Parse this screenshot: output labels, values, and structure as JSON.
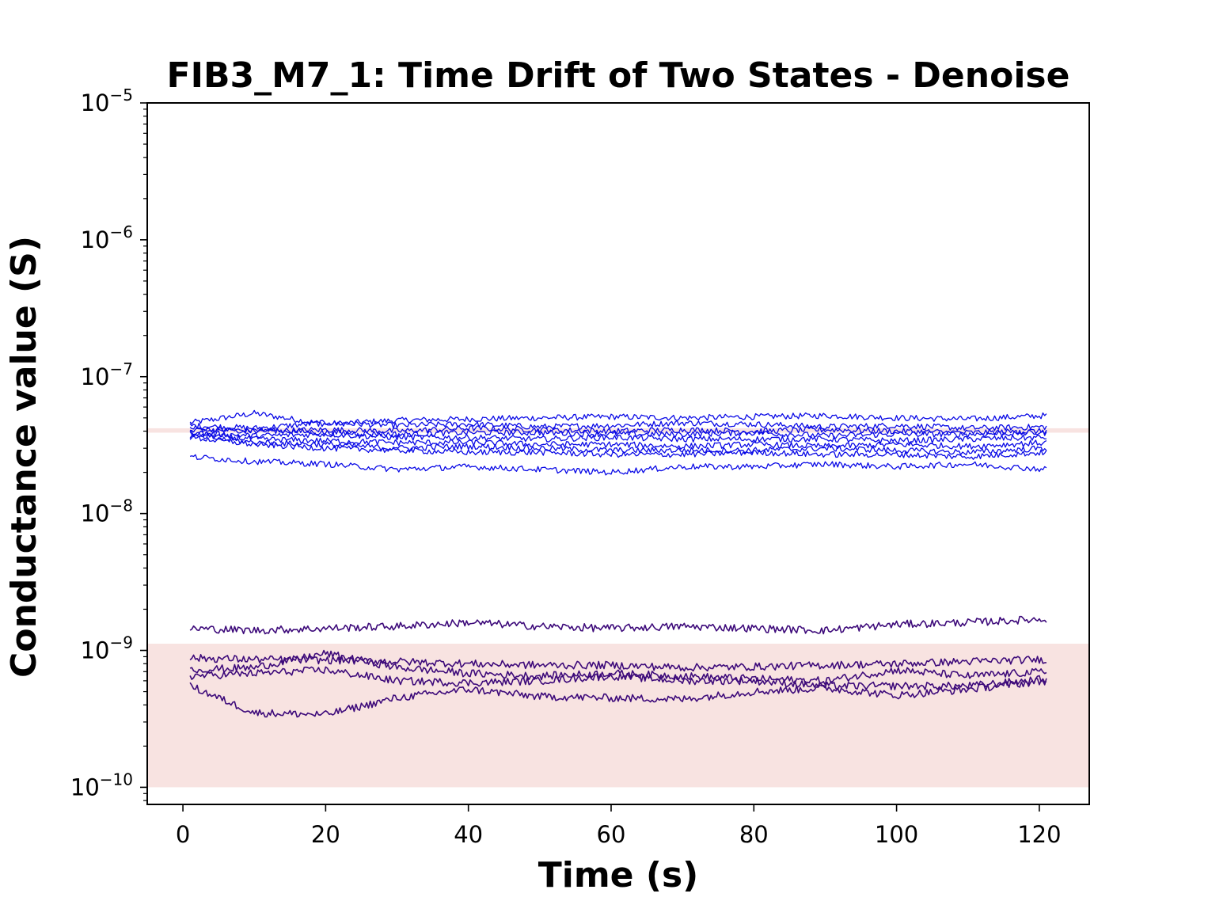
{
  "chart_data": {
    "type": "line",
    "title": "FIB3_M7_1: Time Drift of Two States - Denoise",
    "xlabel": "Time (s)",
    "ylabel": "Conductance value (S)",
    "xlim": [
      -5,
      127
    ],
    "ylim": [
      7.5e-11,
      1e-05
    ],
    "yscale": "log",
    "grid": false,
    "legend": "none",
    "xticks": [
      0,
      20,
      40,
      60,
      80,
      100,
      120
    ],
    "xtick_labels": [
      "0",
      "20",
      "40",
      "60",
      "80",
      "100",
      "120"
    ],
    "yticks": [
      1e-10,
      1e-09,
      1e-08,
      1e-07,
      1e-06,
      1e-05
    ],
    "ytick_labels": [
      {
        "base": "10",
        "exp": "−10"
      },
      {
        "base": "10",
        "exp": "−9"
      },
      {
        "base": "10",
        "exp": "−8"
      },
      {
        "base": "10",
        "exp": "−7"
      },
      {
        "base": "10",
        "exp": "−6"
      },
      {
        "base": "10",
        "exp": "−5"
      }
    ],
    "bands": [
      {
        "state": "low",
        "y": [
          1e-10,
          1.12e-09
        ],
        "color": "#f8e3e1"
      },
      {
        "state": "high",
        "y": [
          3.9e-08,
          4.2e-08
        ],
        "color": "#f8e3e1"
      }
    ],
    "x": [
      1,
      10,
      20,
      30,
      40,
      50,
      60,
      70,
      80,
      90,
      100,
      110,
      121
    ],
    "high_state_color": "#0a0ae6",
    "low_state_color": "#3d0a7a",
    "series": [
      {
        "state": "high",
        "values": [
          4.6e-08,
          5.4e-08,
          4.5e-08,
          4.8e-08,
          4.9e-08,
          5e-08,
          5.1e-08,
          5e-08,
          5.1e-08,
          5.2e-08,
          5e-08,
          4.9e-08,
          5.2e-08
        ]
      },
      {
        "state": "high",
        "values": [
          4.4e-08,
          4.2e-08,
          4.6e-08,
          4.4e-08,
          4.5e-08,
          4.3e-08,
          4.4e-08,
          4.6e-08,
          4.5e-08,
          4.3e-08,
          4.4e-08,
          4.2e-08,
          4.3e-08
        ]
      },
      {
        "state": "high",
        "values": [
          4.2e-08,
          4e-08,
          4.1e-08,
          4e-08,
          4.2e-08,
          4.1e-08,
          4e-08,
          4.1e-08,
          4e-08,
          4.1e-08,
          4e-08,
          3.9e-08,
          4e-08
        ]
      },
      {
        "state": "high",
        "values": [
          4e-08,
          4.1e-08,
          3.9e-08,
          3.8e-08,
          3.9e-08,
          3.9e-08,
          3.8e-08,
          3.8e-08,
          3.9e-08,
          3.7e-08,
          3.8e-08,
          3.8e-08,
          3.9e-08
        ]
      },
      {
        "state": "high",
        "values": [
          3.9e-08,
          3.7e-08,
          3.8e-08,
          3.6e-08,
          3.6e-08,
          3.5e-08,
          3.6e-08,
          3.5e-08,
          3.5e-08,
          3.5e-08,
          3.4e-08,
          3.5e-08,
          3.6e-08
        ]
      },
      {
        "state": "high",
        "values": [
          3.8e-08,
          3.5e-08,
          3.4e-08,
          3.3e-08,
          3.3e-08,
          3.2e-08,
          3.2e-08,
          3.1e-08,
          3.2e-08,
          3.1e-08,
          3.2e-08,
          3.1e-08,
          3.3e-08
        ]
      },
      {
        "state": "high",
        "values": [
          3.7e-08,
          3.3e-08,
          3.2e-08,
          3e-08,
          3.1e-08,
          3e-08,
          2.9e-08,
          2.9e-08,
          2.9e-08,
          3e-08,
          2.9e-08,
          2.8e-08,
          3e-08
        ]
      },
      {
        "state": "high",
        "values": [
          3.6e-08,
          3.2e-08,
          3e-08,
          2.9e-08,
          2.8e-08,
          2.8e-08,
          2.7e-08,
          2.7e-08,
          2.8e-08,
          2.7e-08,
          2.7e-08,
          2.6e-08,
          2.8e-08
        ]
      },
      {
        "state": "high",
        "values": [
          2.6e-08,
          2.4e-08,
          2.3e-08,
          2.1e-08,
          2.2e-08,
          2.1e-08,
          2e-08,
          2.2e-08,
          2.2e-08,
          2.3e-08,
          2.2e-08,
          2.3e-08,
          2.1e-08
        ]
      },
      {
        "state": "low",
        "values": [
          1.45e-09,
          1.4e-09,
          1.45e-09,
          1.5e-09,
          1.6e-09,
          1.5e-09,
          1.45e-09,
          1.5e-09,
          1.45e-09,
          1.4e-09,
          1.55e-09,
          1.6e-09,
          1.7e-09
        ]
      },
      {
        "state": "low",
        "values": [
          8.8e-10,
          8.6e-10,
          8.5e-10,
          8.3e-10,
          8e-10,
          7.8e-10,
          7.8e-10,
          7.5e-10,
          7.6e-10,
          7.8e-10,
          8e-10,
          8.3e-10,
          8.6e-10
        ]
      },
      {
        "state": "low",
        "values": [
          7.2e-10,
          7.5e-10,
          9.5e-10,
          7.5e-10,
          6.8e-10,
          6.5e-10,
          6.8e-10,
          6.5e-10,
          6.2e-10,
          6e-10,
          7.2e-10,
          6.5e-10,
          7e-10
        ]
      },
      {
        "state": "low",
        "values": [
          6.5e-10,
          6.8e-10,
          7.2e-10,
          6e-10,
          5.8e-10,
          6e-10,
          6.5e-10,
          6e-10,
          6e-10,
          5.5e-10,
          5.5e-10,
          5.5e-10,
          6.2e-10
        ]
      },
      {
        "state": "low",
        "values": [
          5.5e-10,
          3.5e-10,
          3.4e-10,
          4.5e-10,
          5.2e-10,
          4.6e-10,
          4.5e-10,
          4.4e-10,
          5e-10,
          5.3e-10,
          4.7e-10,
          5.2e-10,
          6e-10
        ]
      }
    ]
  }
}
